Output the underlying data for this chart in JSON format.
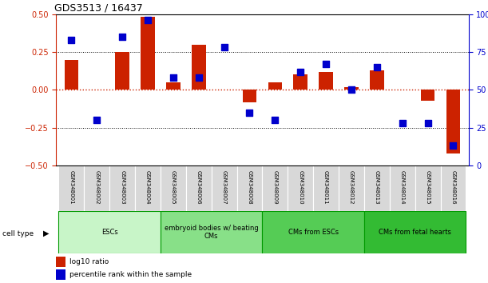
{
  "title": "GDS3513 / 16437",
  "samples": [
    "GSM348001",
    "GSM348002",
    "GSM348003",
    "GSM348004",
    "GSM348005",
    "GSM348006",
    "GSM348007",
    "GSM348008",
    "GSM348009",
    "GSM348010",
    "GSM348011",
    "GSM348012",
    "GSM348013",
    "GSM348014",
    "GSM348015",
    "GSM348016"
  ],
  "log10_ratio": [
    0.2,
    0.0,
    0.25,
    0.48,
    0.05,
    0.3,
    0.0,
    -0.08,
    0.05,
    0.1,
    0.12,
    0.02,
    0.13,
    0.0,
    -0.07,
    -0.42
  ],
  "percentile_rank": [
    83,
    30,
    85,
    96,
    58,
    58,
    78,
    35,
    30,
    62,
    67,
    50,
    65,
    28,
    28,
    13
  ],
  "ylim_left": [
    -0.5,
    0.5
  ],
  "ylim_right": [
    0,
    100
  ],
  "yticks_left": [
    -0.5,
    -0.25,
    0.0,
    0.25,
    0.5
  ],
  "yticks_right": [
    0,
    25,
    50,
    75,
    100
  ],
  "cell_groups": [
    {
      "label": "ESCs",
      "start": 0,
      "end": 3
    },
    {
      "label": "embryoid bodies w/ beating\nCMs",
      "start": 4,
      "end": 7
    },
    {
      "label": "CMs from ESCs",
      "start": 8,
      "end": 11
    },
    {
      "label": "CMs from fetal hearts",
      "start": 12,
      "end": 15
    }
  ],
  "group_colors": [
    "#c8f5c8",
    "#88e088",
    "#55cc55",
    "#33bb33"
  ],
  "bar_color": "#cc2200",
  "dot_color": "#0000cc",
  "left_axis_color": "#cc2200",
  "right_axis_color": "#0000cc",
  "bar_width": 0.55,
  "dot_size": 30,
  "cell_type_label": "cell type"
}
